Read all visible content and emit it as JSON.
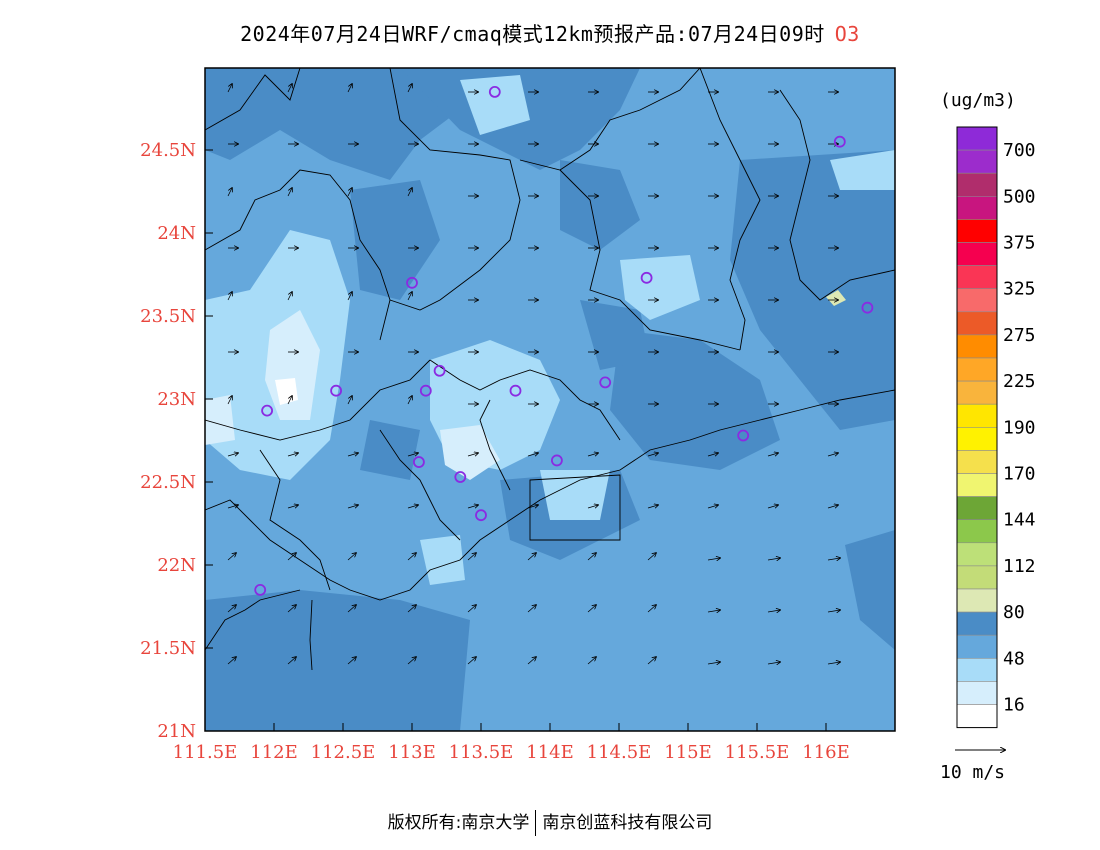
{
  "title": {
    "main": "2024年07月24日WRF/cmaq模式12km预报产品:07月24日09时",
    "species": "O3"
  },
  "map": {
    "lon_ticks": [
      "111.5E",
      "112E",
      "112.5E",
      "113E",
      "113.5E",
      "114E",
      "114.5E",
      "115E",
      "115.5E",
      "116E"
    ],
    "lat_ticks": [
      "21N",
      "21.5N",
      "22N",
      "22.5N",
      "23N",
      "23.5N",
      "24N",
      "24.5N"
    ],
    "tick_color": "#e8453c",
    "stations": [
      [
        113.6,
        24.85
      ],
      [
        116.1,
        24.55
      ],
      [
        113.0,
        23.7
      ],
      [
        114.7,
        23.73
      ],
      [
        116.3,
        23.55
      ],
      [
        113.2,
        23.17
      ],
      [
        113.1,
        23.05
      ],
      [
        113.75,
        23.05
      ],
      [
        114.4,
        23.1
      ],
      [
        112.45,
        23.05
      ],
      [
        111.95,
        22.93
      ],
      [
        113.05,
        22.62
      ],
      [
        113.35,
        22.53
      ],
      [
        114.05,
        22.63
      ],
      [
        115.4,
        22.78
      ],
      [
        113.5,
        22.3
      ],
      [
        111.9,
        21.85
      ]
    ],
    "station_color": "#8a2be2"
  },
  "legend": {
    "unit": "(ug/m3)",
    "labels": [
      "700",
      "500",
      "375",
      "325",
      "275",
      "225",
      "190",
      "170",
      "144",
      "112",
      "80",
      "48",
      "16"
    ],
    "colors": [
      "#8e2ad8",
      "#9c2ccc",
      "#b02d6c",
      "#c8157f",
      "#ff0000",
      "#f5004f",
      "#fa3555",
      "#f86a6a",
      "#ec5a28",
      "#ff8c00",
      "#ffa726",
      "#f9b43c",
      "#ffe600",
      "#fff200",
      "#f5e04c",
      "#f0f570",
      "#6da636",
      "#8cc84b",
      "#bde078",
      "#c3dc78",
      "#dde8b4",
      "#4a8cc6",
      "#65a8dc",
      "#a8dcf8",
      "#d6eefc",
      "#ffffff"
    ]
  },
  "wind": {
    "label": "10 m/s"
  },
  "footer": {
    "left": "版权所有:南京大学",
    "right": "南京创蓝科技有限公司"
  }
}
